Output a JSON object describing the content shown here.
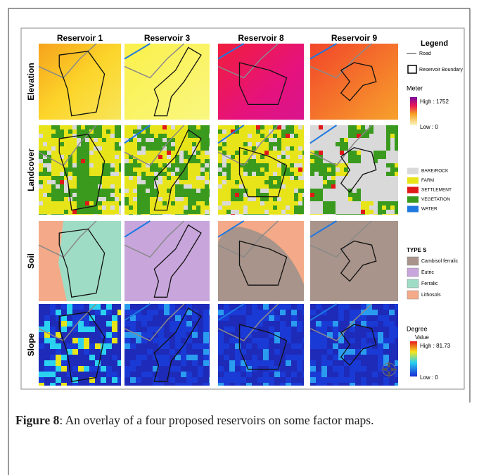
{
  "figure": {
    "columns": [
      "Reservoir 1",
      "Reservoir 3",
      "Reservoir 8",
      "Reservoir 9"
    ],
    "rows": [
      "Elevation",
      "Landcover",
      "Soil",
      "Slope"
    ],
    "legend": {
      "title": "Legend",
      "road": "Road",
      "boundary": "Reservoir Boundary",
      "elevation": {
        "title": "Meter",
        "high": "High : 1752",
        "low": "Low : 0"
      },
      "landcover": [
        "BARE/ROCK",
        "FARM",
        "SETTLEMENT",
        "VEGETATION",
        "WATER"
      ],
      "soil": {
        "title": "TYPE S",
        "items": [
          "Cambisol ferralic",
          "Eutric",
          "Ferralic",
          "Lithosols"
        ]
      },
      "slope": {
        "title": "Degree",
        "subtitle": "Value",
        "high": "High : 81.73",
        "low": "Low : 0"
      }
    },
    "caption": {
      "label": "Figure 8",
      "text": ": An overlay of a four proposed reservoirs on some factor maps."
    }
  }
}
